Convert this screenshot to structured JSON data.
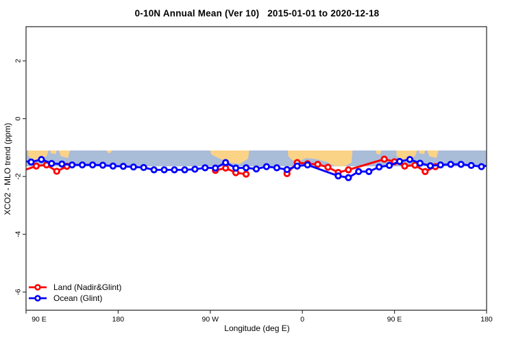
{
  "title": "0-10N Annual Mean (Ver 10)   2015-01-01 to 2020-12-18",
  "axes": {
    "x": {
      "label": "Longitude (deg E)"
    },
    "y": {
      "label": "XCO2 - MLO trend (ppm)"
    }
  },
  "legend": [
    {
      "label": "Land (Nadir&Glint)",
      "color": "#ff0000"
    },
    {
      "label": "Ocean (Glint)",
      "color": "#0000ff"
    }
  ],
  "colors": {
    "background": "#ffffff",
    "plot_border": "#333333",
    "text": "#000000",
    "map_ocean": "#a9bcd8",
    "map_land": "#fbd387",
    "land_series": "#ff0000",
    "ocean_series": "#0000ff"
  },
  "chart_data": {
    "type": "line",
    "title": "0-10N Annual Mean (Ver 10)   2015-01-01 to 2020-12-18",
    "xlabel": "Longitude (deg E)",
    "ylabel": "XCO2 - MLO trend (ppm)",
    "x_axis": {
      "range": [
        90,
        540
      ],
      "ticks": [
        90,
        180,
        270,
        360,
        450,
        540
      ],
      "tick_labels": [
        "90 E",
        "180",
        "90 W",
        "0",
        "90 E",
        "180"
      ],
      "note": "longitude axis spans 450 deg; 90E-180 region appears at both ends"
    },
    "y_axis": {
      "range": [
        3.2,
        -6.6
      ],
      "ticks": [
        2,
        0,
        -2,
        -4,
        -6
      ],
      "tick_labels": [
        "2",
        "0",
        "-2",
        "-4",
        "-6"
      ]
    },
    "grid": false,
    "legend_position": "bottom-left",
    "series": [
      {
        "name": "Land (Nadir&Glint)",
        "color": "#ff0000",
        "marker": "open-circle",
        "segments": [
          [
            [
              85,
              -1.82
            ],
            [
              100,
              -1.64
            ],
            [
              110,
              -1.6
            ],
            [
              120,
              -1.82
            ],
            [
              130,
              -1.65
            ]
          ],
          [
            [
              275,
              -1.79
            ],
            [
              285,
              -1.71
            ],
            [
              295,
              -1.87
            ],
            [
              305,
              -1.92
            ]
          ],
          [
            [
              345,
              -1.9
            ],
            [
              355,
              -1.52
            ],
            [
              365,
              -1.56
            ],
            [
              375,
              -1.58
            ],
            [
              385,
              -1.68
            ],
            [
              395,
              -1.86
            ],
            [
              405,
              -1.77
            ],
            [
              440,
              -1.4
            ],
            [
              450,
              -1.49
            ],
            [
              460,
              -1.64
            ],
            [
              470,
              -1.61
            ],
            [
              480,
              -1.83
            ],
            [
              490,
              -1.66
            ]
          ]
        ]
      },
      {
        "name": "Ocean (Glint)",
        "color": "#0000ff",
        "marker": "open-circle",
        "segments": [
          [
            [
              85,
              -1.45
            ],
            [
              95,
              -1.5
            ],
            [
              105,
              -1.41
            ],
            [
              115,
              -1.55
            ],
            [
              125,
              -1.57
            ],
            [
              135,
              -1.6
            ],
            [
              145,
              -1.6
            ],
            [
              155,
              -1.6
            ],
            [
              165,
              -1.61
            ],
            [
              175,
              -1.64
            ],
            [
              185,
              -1.65
            ],
            [
              195,
              -1.67
            ],
            [
              205,
              -1.69
            ],
            [
              215,
              -1.77
            ],
            [
              225,
              -1.77
            ],
            [
              235,
              -1.77
            ],
            [
              245,
              -1.77
            ],
            [
              255,
              -1.75
            ],
            [
              265,
              -1.7
            ],
            [
              275,
              -1.71
            ],
            [
              285,
              -1.52
            ],
            [
              295,
              -1.71
            ],
            [
              305,
              -1.7
            ],
            [
              315,
              -1.74
            ],
            [
              325,
              -1.66
            ],
            [
              335,
              -1.7
            ],
            [
              345,
              -1.76
            ],
            [
              355,
              -1.64
            ],
            [
              365,
              -1.6
            ],
            [
              395,
              -1.98
            ],
            [
              405,
              -2.04
            ],
            [
              415,
              -1.83
            ],
            [
              425,
              -1.83
            ],
            [
              435,
              -1.67
            ],
            [
              445,
              -1.62
            ],
            [
              455,
              -1.48
            ],
            [
              465,
              -1.41
            ],
            [
              475,
              -1.54
            ],
            [
              485,
              -1.63
            ],
            [
              495,
              -1.6
            ],
            [
              505,
              -1.58
            ],
            [
              515,
              -1.58
            ],
            [
              525,
              -1.62
            ],
            [
              535,
              -1.66
            ],
            [
              545,
              -1.6
            ]
          ]
        ]
      }
    ],
    "map_band": {
      "description": "world map strip of 0-10N latitude drawn across plot",
      "ppm_top": -1.1,
      "ppm_bottom": -1.65,
      "ocean_color": "#a9bcd8",
      "land_color": "#fbd387",
      "land_polygons": [
        [
          [
            92,
            -1.1
          ],
          [
            112,
            -1.1
          ],
          [
            110,
            -1.3
          ],
          [
            103,
            -1.46
          ],
          [
            96,
            -1.41
          ],
          [
            92,
            -1.28
          ]
        ],
        [
          [
            114,
            -1.1
          ],
          [
            120,
            -1.1
          ],
          [
            119,
            -1.23
          ],
          [
            114,
            -1.19
          ]
        ],
        [
          [
            122,
            -1.1
          ],
          [
            133,
            -1.1
          ],
          [
            131,
            -1.36
          ],
          [
            124,
            -1.3
          ]
        ],
        [
          [
            169,
            -1.1
          ],
          [
            174,
            -1.1
          ],
          [
            172,
            -1.2
          ],
          [
            169,
            -1.16
          ]
        ],
        [
          [
            270,
            -1.1
          ],
          [
            308,
            -1.1
          ],
          [
            307,
            -1.38
          ],
          [
            299,
            -1.57
          ],
          [
            288,
            -1.52
          ],
          [
            278,
            -1.36
          ],
          [
            271,
            -1.24
          ]
        ],
        [
          [
            346,
            -1.1
          ],
          [
            409,
            -1.1
          ],
          [
            408,
            -1.52
          ],
          [
            401,
            -1.65
          ],
          [
            391,
            -1.63
          ],
          [
            384,
            -1.5
          ],
          [
            374,
            -1.4
          ],
          [
            364,
            -1.36
          ],
          [
            357,
            -1.46
          ],
          [
            350,
            -1.44
          ],
          [
            346,
            -1.28
          ]
        ],
        [
          [
            432,
            -1.1
          ],
          [
            437,
            -1.1
          ],
          [
            436,
            -1.25
          ],
          [
            432,
            -1.2
          ]
        ],
        [
          [
            452,
            -1.1
          ],
          [
            472,
            -1.1
          ],
          [
            470,
            -1.3
          ],
          [
            463,
            -1.46
          ],
          [
            456,
            -1.41
          ],
          [
            452,
            -1.28
          ]
        ],
        [
          [
            474,
            -1.1
          ],
          [
            480,
            -1.1
          ],
          [
            479,
            -1.23
          ],
          [
            474,
            -1.19
          ]
        ],
        [
          [
            482,
            -1.1
          ],
          [
            493,
            -1.1
          ],
          [
            491,
            -1.36
          ],
          [
            484,
            -1.3
          ]
        ]
      ]
    }
  }
}
